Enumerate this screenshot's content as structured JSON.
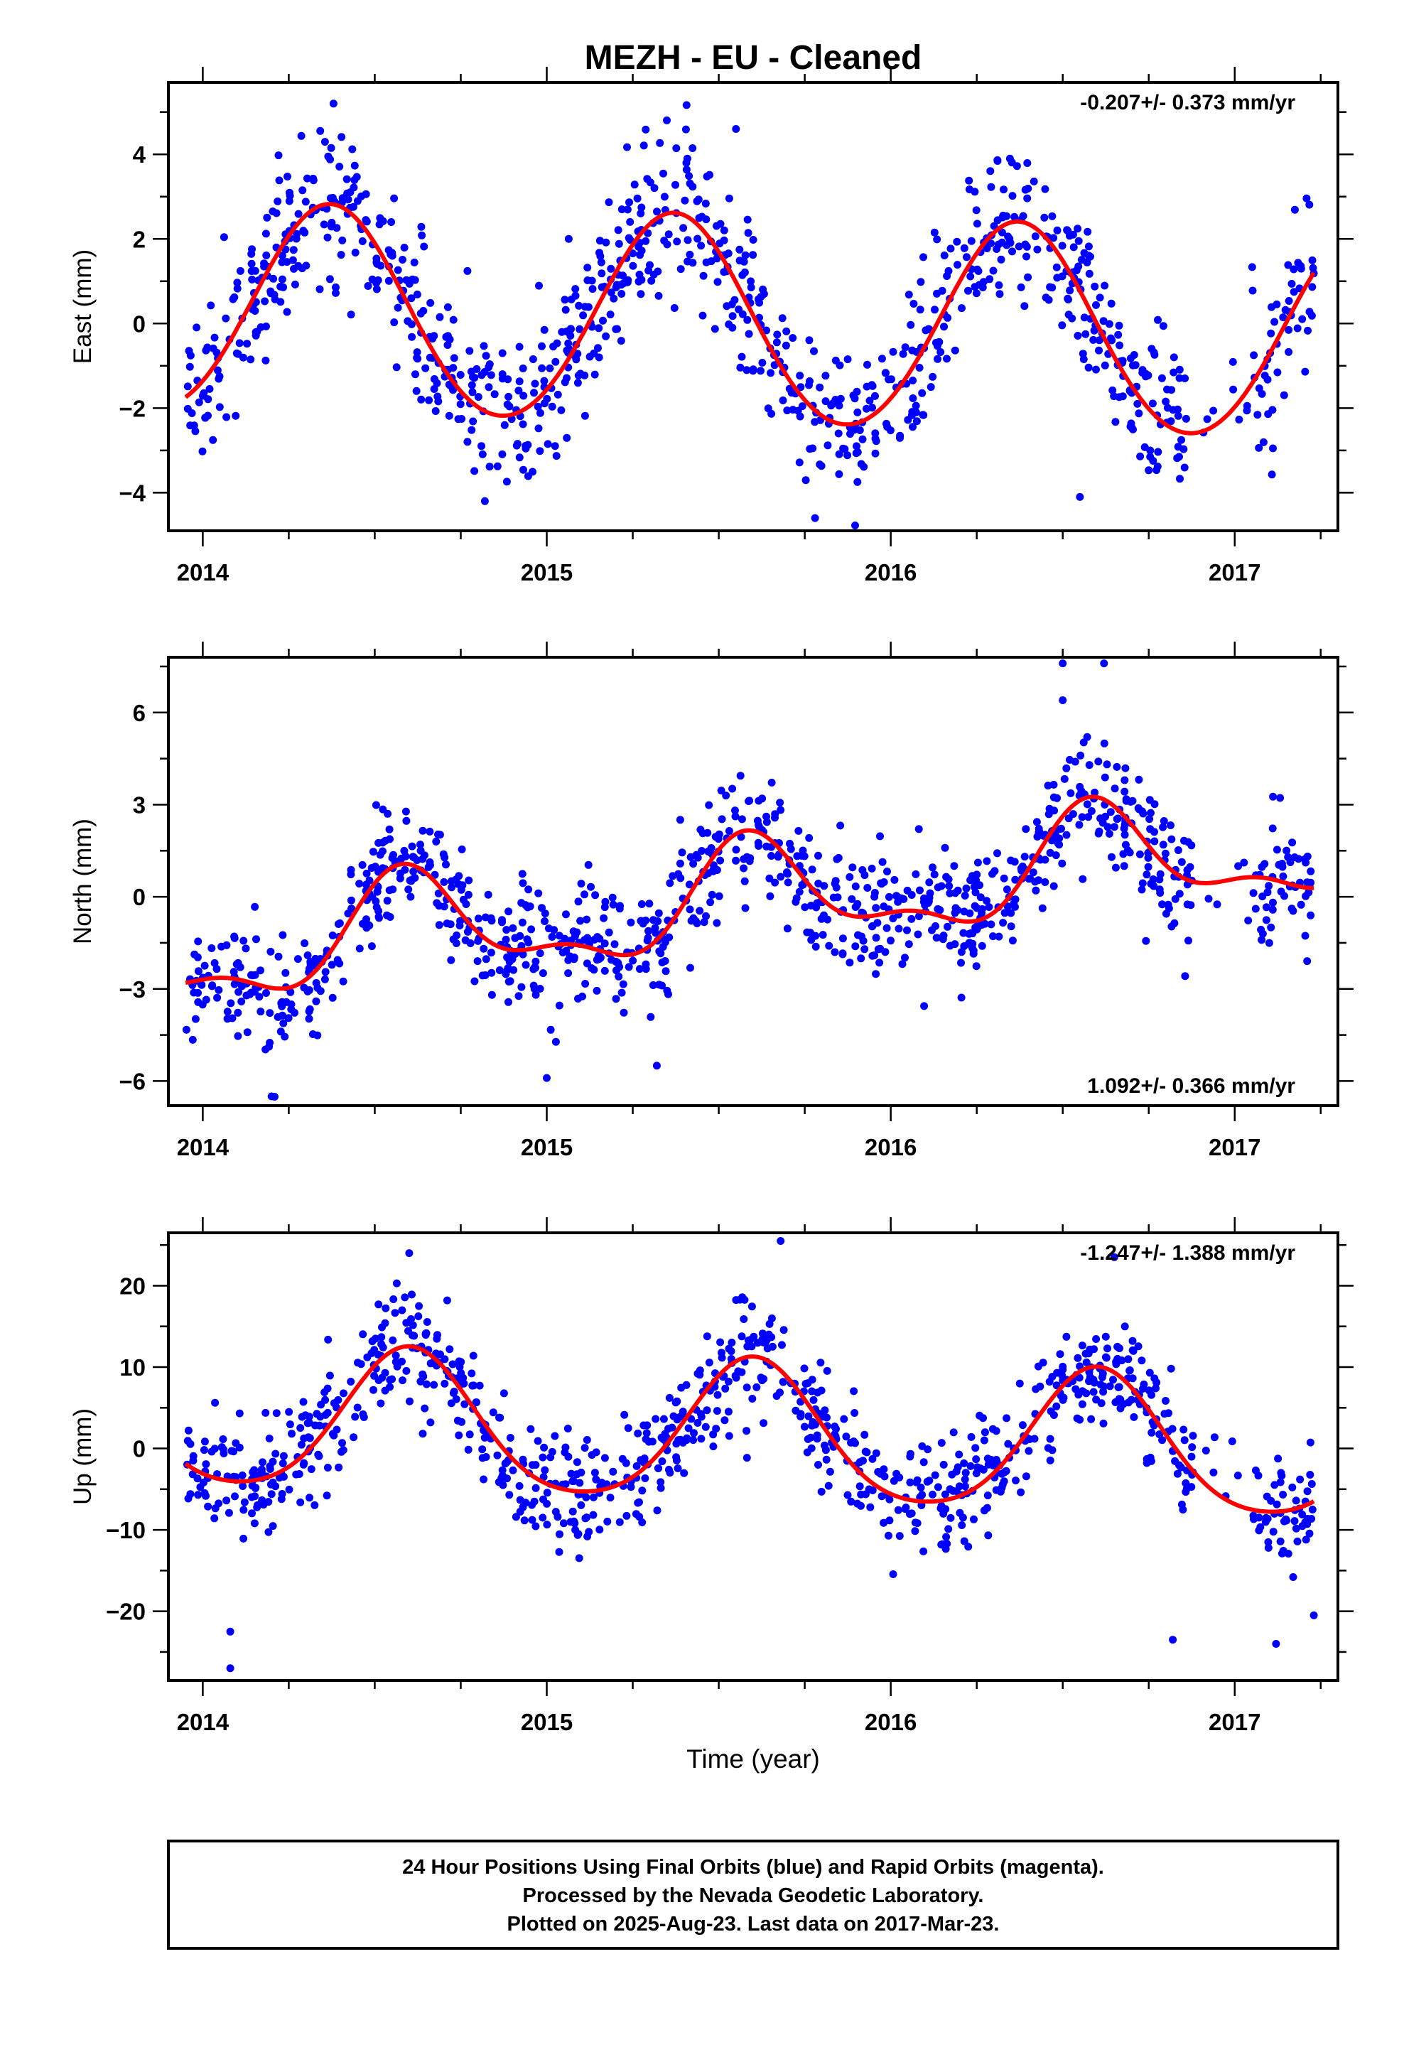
{
  "page": {
    "title": "MEZH  - EU - Cleaned",
    "xlabel": "Time (year)"
  },
  "footer": {
    "lines": [
      "24 Hour Positions Using Final Orbits (blue) and Rapid Orbits (magenta).",
      "Processed by the Nevada Geodetic Laboratory.",
      "Plotted on 2025-Aug-23. Last data on 2017-Mar-23."
    ]
  },
  "colors": {
    "points": "#0000ff",
    "fit": "#ff0000",
    "frame": "#000000"
  },
  "chart_data": [
    {
      "type": "scatter",
      "name": "east",
      "ylabel": "East (mm)",
      "rate": "-0.207+/- 0.373 mm/yr",
      "rate_position": "top-right",
      "xlim": [
        2013.9,
        2017.3
      ],
      "ylim": [
        -4.9,
        5.7
      ],
      "xticks": [
        2014,
        2015,
        2016,
        2017
      ],
      "yticks": [
        -4,
        -2,
        0,
        2,
        4
      ],
      "data_span": [
        2013.95,
        2017.23
      ],
      "fit_model": {
        "description": "offset + trend + annual + semiannual",
        "ref_year": 2015.6,
        "offset": 0.0,
        "trend": -0.207,
        "annual": {
          "amplitude": 2.45,
          "phase_year": 2015.37
        },
        "semiannual": {
          "amplitude": 0.12,
          "phase_year": 2015.37
        }
      },
      "scatter_model": {
        "noise_sd": 0.95,
        "points": 1050,
        "high_outliers": [
          [
            2014.38,
            5.2
          ],
          [
            2015.55,
            4.6
          ]
        ],
        "low_outliers": [
          [
            2014.82,
            -4.2
          ],
          [
            2015.78,
            -4.6
          ],
          [
            2016.55,
            -4.1
          ]
        ]
      }
    },
    {
      "type": "scatter",
      "name": "north",
      "ylabel": "North (mm)",
      "rate": "1.092+/- 0.366 mm/yr",
      "rate_position": "bottom-right",
      "xlim": [
        2013.9,
        2017.3
      ],
      "ylim": [
        -6.8,
        7.8
      ],
      "xticks": [
        2014,
        2015,
        2016,
        2017
      ],
      "yticks": [
        -6,
        -3,
        0,
        3,
        6
      ],
      "data_span": [
        2013.95,
        2017.23
      ],
      "fit_model": {
        "description": "offset + trend + annual + semiannual",
        "ref_year": 2015.6,
        "offset": -0.1,
        "trend": 1.092,
        "annual": {
          "amplitude": 1.6,
          "phase_year": 2015.6
        },
        "semiannual": {
          "amplitude": 0.7,
          "phase_year": 2015.57
        }
      },
      "scatter_model": {
        "noise_sd": 1.0,
        "points": 1050,
        "high_outliers": [
          [
            2016.5,
            7.6
          ],
          [
            2016.62,
            7.6
          ],
          [
            2016.5,
            6.4
          ]
        ],
        "low_outliers": [
          [
            2014.2,
            -6.5
          ],
          [
            2015.0,
            -5.9
          ],
          [
            2015.32,
            -5.5
          ]
        ]
      }
    },
    {
      "type": "scatter",
      "name": "up",
      "ylabel": "Up (mm)",
      "rate": "-1.247+/- 1.388 mm/yr",
      "rate_position": "top-right",
      "xlim": [
        2013.9,
        2017.3
      ],
      "ylim": [
        -28.5,
        26.5
      ],
      "xticks": [
        2014,
        2015,
        2016,
        2017
      ],
      "yticks": [
        -20,
        -10,
        0,
        10,
        20
      ],
      "data_span": [
        2013.95,
        2017.23
      ],
      "fit_model": {
        "description": "offset + trend + annual + semiannual",
        "ref_year": 2015.6,
        "offset": 1.5,
        "trend": -1.247,
        "annual": {
          "amplitude": 8.6,
          "phase_year": 2015.6
        },
        "semiannual": {
          "amplitude": 1.2,
          "phase_year": 2015.6
        }
      },
      "scatter_model": {
        "noise_sd": 3.6,
        "points": 1000,
        "high_outliers": [
          [
            2014.6,
            24.0
          ],
          [
            2015.68,
            25.5
          ],
          [
            2016.65,
            23.5
          ]
        ],
        "low_outliers": [
          [
            2014.08,
            -27.0
          ],
          [
            2014.08,
            -22.5
          ],
          [
            2016.82,
            -23.5
          ],
          [
            2017.12,
            -24.0
          ],
          [
            2017.23,
            -20.5
          ]
        ]
      }
    }
  ]
}
